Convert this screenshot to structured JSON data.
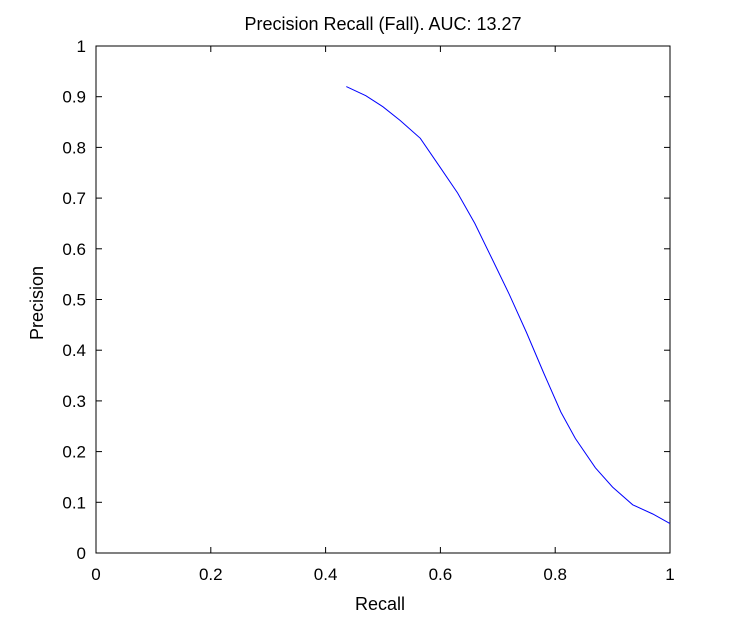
{
  "chart_data": {
    "type": "line",
    "title": "Precision Recall (Fall).  AUC: 13.27",
    "xlabel": "Recall",
    "ylabel": "Precision",
    "xlim": [
      0,
      1
    ],
    "ylim": [
      0,
      1
    ],
    "grid": false,
    "x_ticks": [
      0,
      0.2,
      0.4,
      0.6,
      0.8,
      1
    ],
    "x_tick_labels": [
      "0",
      "0.2",
      "0.4",
      "0.6",
      "0.8",
      "1"
    ],
    "y_ticks": [
      0,
      0.1,
      0.2,
      0.3,
      0.4,
      0.5,
      0.6,
      0.7,
      0.8,
      0.9,
      1
    ],
    "y_tick_labels": [
      "0",
      "0.1",
      "0.2",
      "0.3",
      "0.4",
      "0.5",
      "0.6",
      "0.7",
      "0.8",
      "0.9",
      "1"
    ],
    "series": [
      {
        "color": "#0000ff",
        "x": [
          0.436,
          0.47,
          0.5,
          0.53,
          0.565,
          0.6,
          0.63,
          0.66,
          0.69,
          0.72,
          0.75,
          0.78,
          0.81,
          0.835,
          0.87,
          0.9,
          0.935,
          0.97,
          1.0
        ],
        "y": [
          0.92,
          0.902,
          0.88,
          0.853,
          0.818,
          0.76,
          0.71,
          0.65,
          0.58,
          0.51,
          0.435,
          0.355,
          0.278,
          0.226,
          0.168,
          0.13,
          0.095,
          0.077,
          0.058
        ]
      }
    ]
  }
}
